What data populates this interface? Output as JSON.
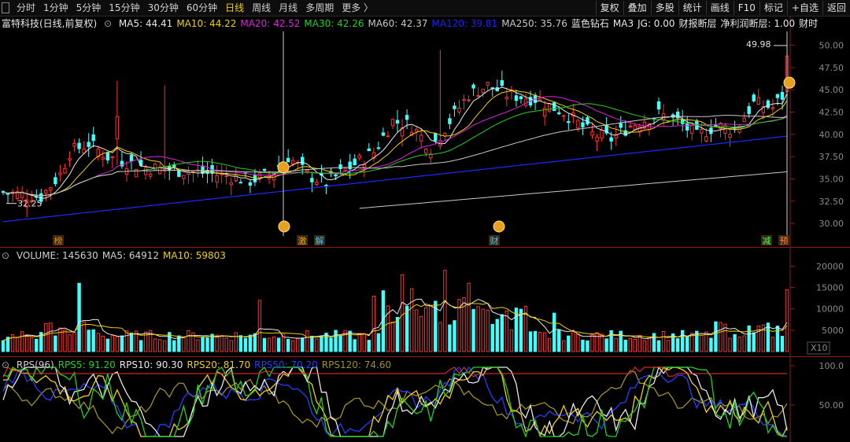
{
  "toolbar": {
    "tabs": [
      "分时",
      "1分钟",
      "5分钟",
      "15分钟",
      "30分钟",
      "60分钟",
      "日线",
      "周线",
      "月线",
      "多周期",
      "更多 〉"
    ],
    "active_tab": "日线",
    "buttons": [
      "复权",
      "叠加",
      "多股",
      "统计",
      "画线",
      "F10",
      "标记",
      "+自选",
      "返回"
    ]
  },
  "price_panel": {
    "stock_title": "富特科技(日线,前复权)",
    "ma": [
      {
        "label": "MA5: 44.41",
        "color": "#e8e8e8"
      },
      {
        "label": "MA10: 44.22",
        "color": "#f0d000"
      },
      {
        "label": "MA20: 42.52",
        "color": "#e020e0"
      },
      {
        "label": "MA30: 42.26",
        "color": "#20d020"
      },
      {
        "label": "MA60: 42.37",
        "color": "#c8c8c8"
      },
      {
        "label": "MA120: 39.81",
        "color": "#2020ff"
      },
      {
        "label": "MA250: 35.76",
        "color": "#c8c8c8"
      },
      {
        "label": "蓝色钻石",
        "color": "#e8e8e8"
      },
      {
        "label": "MA3",
        "color": "#e8e8e8"
      },
      {
        "label": "JG: 0.00",
        "color": "#e8e8e8"
      },
      {
        "label": "财报断层",
        "color": "#e8e8e8"
      },
      {
        "label": "净利润断层: 1.00",
        "color": "#e8e8e8"
      },
      {
        "label": "财时",
        "color": "#e8e8e8"
      }
    ],
    "y_ticks": [
      "50.00",
      "47.50",
      "45.00",
      "42.50",
      "40.00",
      "37.50",
      "35.00",
      "32.50",
      "30.00"
    ],
    "high_label": "49.98",
    "low_label": "32.25",
    "event_markers": [
      "榜",
      "激",
      "解",
      "财",
      "减",
      "预"
    ]
  },
  "volume_panel": {
    "legend": [
      {
        "label": "VOLUME: 145630",
        "color": "#d0d0d0"
      },
      {
        "label": "MA5: 64912",
        "color": "#d0d0d0"
      },
      {
        "label": "MA10: 59803",
        "color": "#f0d000"
      }
    ],
    "y_ticks": [
      "20000",
      "15000",
      "10000",
      "5000"
    ],
    "unit": "X10"
  },
  "rps_panel": {
    "legend": [
      {
        "label": "RPS(96)",
        "color": "#d0d0d0"
      },
      {
        "label": "RPS5: 91.20",
        "color": "#20d020"
      },
      {
        "label": "RPS10: 90.30",
        "color": "#e8e8e8"
      },
      {
        "label": "RPS20: 81.70",
        "color": "#f0d000"
      },
      {
        "label": "RPS50: 70.20",
        "color": "#2040ff"
      },
      {
        "label": "RPS120: 74.60",
        "color": "#a09020"
      }
    ],
    "y_ticks": [
      "100.0",
      "50.00"
    ]
  },
  "colors": {
    "up": "#ff3030",
    "down": "#40ffff",
    "background": "#000000",
    "grid": "#8b1a1a"
  }
}
